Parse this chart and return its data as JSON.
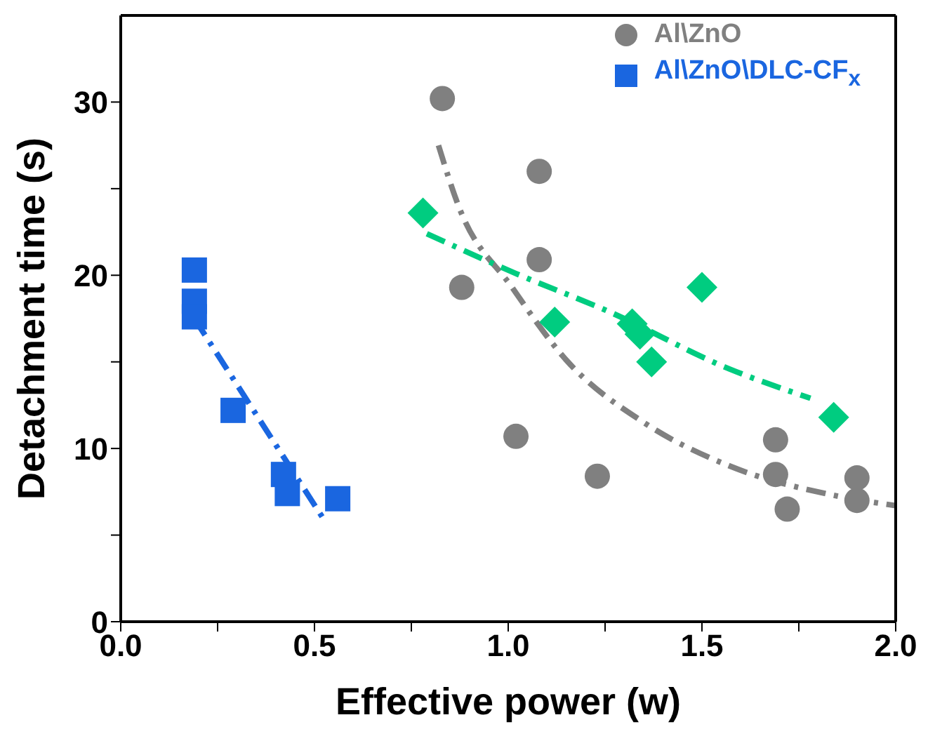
{
  "chart_data": {
    "type": "scatter",
    "xlabel": "Effective power (w)",
    "ylabel": "Detachment time (s)",
    "xlim": [
      0,
      2
    ],
    "ylim": [
      0,
      35
    ],
    "xticks": [
      {
        "value": 0,
        "label": "0.0"
      },
      {
        "value": 0.25,
        "label": null
      },
      {
        "value": 0.5,
        "label": "0.5"
      },
      {
        "value": 0.75,
        "label": null
      },
      {
        "value": 1,
        "label": "1.0"
      },
      {
        "value": 1.25,
        "label": null
      },
      {
        "value": 1.5,
        "label": "1.5"
      },
      {
        "value": 1.75,
        "label": null
      },
      {
        "value": 2,
        "label": "2.0"
      }
    ],
    "yticks": [
      0,
      {
        "value": 5,
        "label": null
      },
      10,
      {
        "value": 15,
        "label": null
      },
      20,
      {
        "value": 25,
        "label": null
      },
      30
    ],
    "grid": false,
    "legend": "top right",
    "series": [
      {
        "name": "Al\\ZnO",
        "color": "#808080",
        "marker": "circle",
        "x": [
          0.83,
          0.88,
          1.02,
          1.08,
          1.08,
          1.23,
          1.69,
          1.69,
          1.72,
          1.9,
          1.9
        ],
        "values": [
          30.2,
          19.3,
          10.7,
          26.0,
          20.9,
          8.4,
          10.5,
          8.5,
          6.5,
          8.3,
          7.0
        ]
      },
      {
        "color": "#00cc80",
        "marker": "diamond",
        "x": [
          0.78,
          1.12,
          1.32,
          1.34,
          1.37,
          1.5,
          1.84
        ],
        "values": [
          23.6,
          17.3,
          17.2,
          16.6,
          15.0,
          19.3,
          11.8
        ]
      },
      {
        "name": "Al\\ZnO\\DLC-CF$_{x}$",
        "color": "#1a66e0",
        "marker": "square",
        "x": [
          0.19,
          0.19,
          0.19,
          0.29,
          0.42,
          0.43,
          0.56
        ],
        "values": [
          20.3,
          18.5,
          17.6,
          12.2,
          8.5,
          7.4,
          7.1
        ]
      },
      {
        "type": "line",
        "color": "#808080",
        "line_style": "dashed",
        "marker": "none",
        "x": [
          0.82,
          0.87,
          1.01,
          1.15,
          1.35,
          1.57,
          1.84,
          2.0
        ],
        "values": [
          27.5,
          24.1,
          19.3,
          15.1,
          11.5,
          9.0,
          7.3,
          6.7
        ]
      },
      {
        "type": "line",
        "color": "#00cc80",
        "line_style": "dashed",
        "marker": "none",
        "x": [
          0.79,
          1.02,
          1.26,
          1.57,
          1.78
        ],
        "values": [
          22.4,
          20.1,
          17.9,
          14.6,
          12.9
        ]
      },
      {
        "type": "line",
        "color": "#1a66e0",
        "line_style": "dashed",
        "marker": "none",
        "x": [
          0.19,
          0.53
        ],
        "values": [
          17.5,
          5.7
        ]
      }
    ]
  }
}
